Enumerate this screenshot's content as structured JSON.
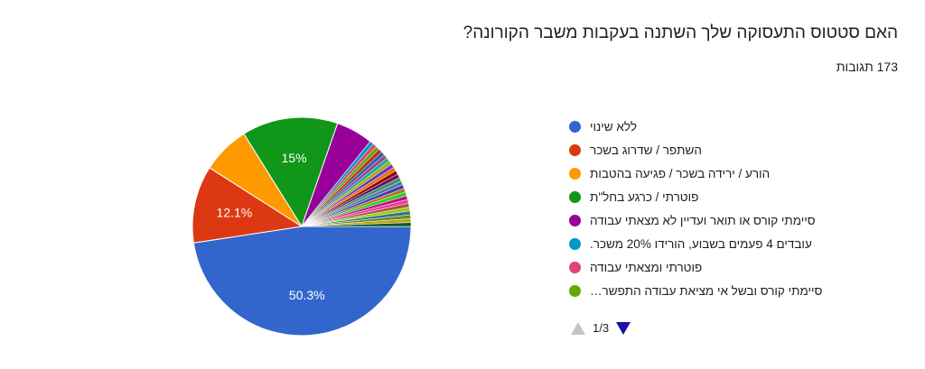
{
  "header": {
    "question": "האם סטטוס התעסוקה שלך השתנה בעקבות משבר הקורונה?",
    "responses": "173 תגובות"
  },
  "legend": {
    "items": [
      {
        "label": "ללא שינוי",
        "color": "#3366cc"
      },
      {
        "label": "השתפר / שדרוג בשכר",
        "color": "#dc3912"
      },
      {
        "label": "הורע / ירידה בשכר / פגיעה בהטבות",
        "color": "#ff9900"
      },
      {
        "label": "פוטרתי / כרגע בחל\"ת",
        "color": "#109618"
      },
      {
        "label": "סיימתי קורס או תואר ועדיין לא מצאתי עבודה",
        "color": "#990099"
      },
      {
        "label": "עובדים 4 פעמים בשבוע, הורידו 20% משכר.",
        "color": "#0099c6"
      },
      {
        "label": "פוטרתי ומצאתי עבודה",
        "color": "#dd4477"
      },
      {
        "label": "סיימתי קורס ובשל אי מציאת עבודה התפשר…",
        "color": "#66aa00"
      }
    ]
  },
  "pager": {
    "text": "1/3"
  },
  "chart_data": {
    "type": "pie",
    "total_responses": 173,
    "slices": [
      {
        "label": "ללא שינוי",
        "value": 50.3,
        "color": "#3366cc",
        "data_label": "50.3%"
      },
      {
        "label": "השתפר / שדרוג בשכר",
        "value": 12.1,
        "color": "#dc3912",
        "data_label": "12.1%"
      },
      {
        "label": "הורע / ירידה בשכר / פגיעה בהטבות",
        "value": 7.5,
        "color": "#ff9900",
        "data_label": ""
      },
      {
        "label": "פוטרתי / כרגע בחל\"ת",
        "value": 15.0,
        "color": "#109618",
        "data_label": "15%"
      },
      {
        "label": "סיימתי קורס או תואר ועדיין לא מצאתי עבודה",
        "value": 5.8,
        "color": "#990099",
        "data_label": ""
      },
      {
        "label": "עובדים 4 פעמים בשבוע, הורידו 20% משכר.",
        "value": 0.6,
        "color": "#0099c6",
        "data_label": ""
      },
      {
        "label": "פוטרתי ומצאתי עבודה",
        "value": 0.6,
        "color": "#dd4477",
        "data_label": ""
      },
      {
        "label": "סיימתי קורס ובשל אי מציאת עבודה התפשר…",
        "value": 0.6,
        "color": "#66aa00",
        "data_label": ""
      },
      {
        "label": "",
        "value": 0.6,
        "color": "#b82e2e",
        "data_label": ""
      },
      {
        "label": "",
        "value": 0.6,
        "color": "#316395",
        "data_label": ""
      },
      {
        "label": "",
        "value": 0.6,
        "color": "#994499",
        "data_label": ""
      },
      {
        "label": "",
        "value": 0.6,
        "color": "#22aa99",
        "data_label": ""
      },
      {
        "label": "",
        "value": 0.6,
        "color": "#aaaa11",
        "data_label": ""
      },
      {
        "label": "",
        "value": 0.6,
        "color": "#6633cc",
        "data_label": ""
      },
      {
        "label": "",
        "value": 0.6,
        "color": "#e67300",
        "data_label": ""
      },
      {
        "label": "",
        "value": 0.6,
        "color": "#8b0707",
        "data_label": ""
      },
      {
        "label": "",
        "value": 0.6,
        "color": "#651067",
        "data_label": ""
      },
      {
        "label": "",
        "value": 0.6,
        "color": "#329262",
        "data_label": ""
      },
      {
        "label": "",
        "value": 0.6,
        "color": "#5574a6",
        "data_label": ""
      },
      {
        "label": "",
        "value": 0.6,
        "color": "#3b3eac",
        "data_label": ""
      },
      {
        "label": "",
        "value": 0.6,
        "color": "#b77322",
        "data_label": ""
      },
      {
        "label": "",
        "value": 0.6,
        "color": "#16d620",
        "data_label": ""
      },
      {
        "label": "",
        "value": 0.6,
        "color": "#b91383",
        "data_label": ""
      },
      {
        "label": "",
        "value": 0.6,
        "color": "#f4359e",
        "data_label": ""
      },
      {
        "label": "",
        "value": 0.6,
        "color": "#9c5935",
        "data_label": ""
      },
      {
        "label": "",
        "value": 0.6,
        "color": "#a9c413",
        "data_label": ""
      },
      {
        "label": "",
        "value": 0.6,
        "color": "#2a778d",
        "data_label": ""
      },
      {
        "label": "",
        "value": 0.6,
        "color": "#668d1c",
        "data_label": ""
      },
      {
        "label": "",
        "value": 0.6,
        "color": "#bea413",
        "data_label": ""
      },
      {
        "label": "",
        "value": 0.6,
        "color": "#0c5922",
        "data_label": ""
      }
    ],
    "start": "3 o'clock, clockwise",
    "legend_position": "right"
  }
}
